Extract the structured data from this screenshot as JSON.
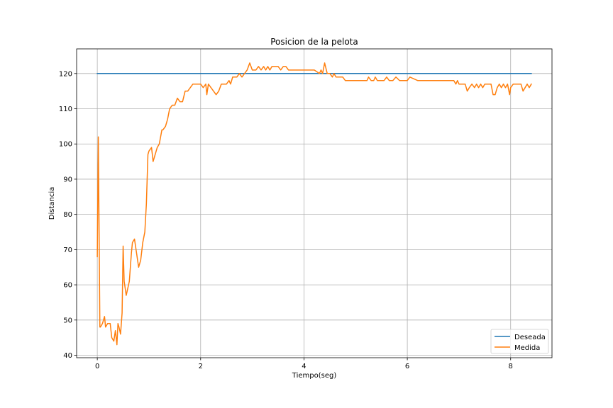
{
  "chart_data": {
    "type": "line",
    "title": "Posicion de la pelota",
    "xlabel": "Tiempo(seg)",
    "ylabel": "Distancia",
    "xlim": [
      -0.4,
      8.8
    ],
    "ylim": [
      39.3,
      127.0
    ],
    "xticks": [
      0,
      2,
      4,
      6,
      8
    ],
    "yticks": [
      40,
      50,
      60,
      70,
      80,
      90,
      100,
      110,
      120
    ],
    "grid": true,
    "legend_position": "bottom-right",
    "series": [
      {
        "name": "Deseada",
        "color": "#1f77b4",
        "x": [
          0,
          8.4
        ],
        "y": [
          120,
          120
        ]
      },
      {
        "name": "Medida",
        "color": "#ff7f0e",
        "x": [
          0.0,
          0.02,
          0.05,
          0.06,
          0.1,
          0.14,
          0.16,
          0.2,
          0.25,
          0.28,
          0.32,
          0.35,
          0.38,
          0.4,
          0.42,
          0.45,
          0.48,
          0.5,
          0.52,
          0.56,
          0.59,
          0.62,
          0.66,
          0.68,
          0.72,
          0.76,
          0.8,
          0.84,
          0.88,
          0.92,
          0.95,
          0.98,
          1.0,
          1.05,
          1.08,
          1.12,
          1.16,
          1.2,
          1.25,
          1.27,
          1.32,
          1.36,
          1.4,
          1.45,
          1.5,
          1.55,
          1.6,
          1.65,
          1.7,
          1.75,
          1.8,
          1.85,
          1.9,
          2.0,
          2.05,
          2.1,
          2.12,
          2.15,
          2.2,
          2.25,
          2.3,
          2.35,
          2.4,
          2.45,
          2.5,
          2.55,
          2.58,
          2.62,
          2.65,
          2.7,
          2.75,
          2.8,
          2.85,
          2.9,
          2.95,
          3.0,
          3.03,
          3.07,
          3.12,
          3.17,
          3.22,
          3.26,
          3.3,
          3.34,
          3.38,
          3.42,
          3.46,
          3.5,
          3.55,
          3.6,
          3.65,
          3.7,
          3.72,
          3.75,
          3.8,
          3.85,
          3.9,
          3.95,
          4.0,
          4.1,
          4.2,
          4.3,
          4.33,
          4.36,
          4.4,
          4.45,
          4.5,
          4.55,
          4.58,
          4.62,
          4.65,
          4.7,
          4.75,
          4.8,
          4.82,
          4.9,
          5.0,
          5.1,
          5.2,
          5.22,
          5.25,
          5.3,
          5.35,
          5.38,
          5.42,
          5.5,
          5.52,
          5.55,
          5.6,
          5.65,
          5.68,
          5.72,
          5.78,
          5.85,
          5.92,
          5.96,
          6.0,
          6.05,
          6.2,
          6.4,
          6.6,
          6.8,
          6.88,
          6.9,
          6.94,
          6.97,
          7.0,
          7.05,
          7.1,
          7.12,
          7.16,
          7.2,
          7.25,
          7.3,
          7.34,
          7.38,
          7.42,
          7.46,
          7.5,
          7.55,
          7.6,
          7.62,
          7.66,
          7.7,
          7.74,
          7.78,
          7.82,
          7.86,
          7.9,
          7.94,
          7.98,
          8.0,
          8.05,
          8.1,
          8.15,
          8.2,
          8.24,
          8.28,
          8.32,
          8.36,
          8.4
        ],
        "y": [
          68,
          102,
          48,
          48,
          49,
          51,
          48,
          49,
          49,
          45,
          44,
          47,
          43,
          49,
          48,
          46,
          52,
          71,
          61,
          57,
          59,
          61,
          69,
          72,
          73,
          69,
          65,
          67,
          72,
          75,
          83,
          97,
          98,
          99,
          95,
          97,
          99,
          100,
          104,
          104,
          105,
          107,
          110,
          111,
          111,
          113,
          112,
          112,
          115,
          115,
          116,
          117,
          117,
          117,
          116,
          117,
          114,
          117,
          116,
          115,
          114,
          115,
          117,
          117,
          117,
          118,
          117,
          119,
          119,
          119,
          120,
          119,
          120,
          121,
          123,
          121,
          121,
          121,
          122,
          121,
          122,
          121,
          122,
          121,
          122,
          122,
          122,
          122,
          121,
          122,
          122,
          121,
          121,
          121,
          121,
          121,
          121,
          121,
          121,
          121,
          121,
          120,
          121,
          120,
          123,
          120,
          120,
          119,
          120,
          119,
          119,
          119,
          119,
          118,
          118,
          118,
          118,
          118,
          118,
          118,
          119,
          118,
          118,
          119,
          118,
          118,
          118,
          118,
          119,
          118,
          118,
          118,
          119,
          118,
          118,
          118,
          118,
          119,
          118,
          118,
          118,
          118,
          118,
          118,
          117,
          118,
          117,
          117,
          117,
          117,
          115,
          116,
          117,
          116,
          117,
          116,
          117,
          116,
          117,
          117,
          117,
          117,
          114,
          114,
          116,
          117,
          116,
          117,
          116,
          117,
          114,
          116,
          117,
          117,
          117,
          117,
          115,
          116,
          117,
          116,
          117
        ]
      }
    ]
  }
}
